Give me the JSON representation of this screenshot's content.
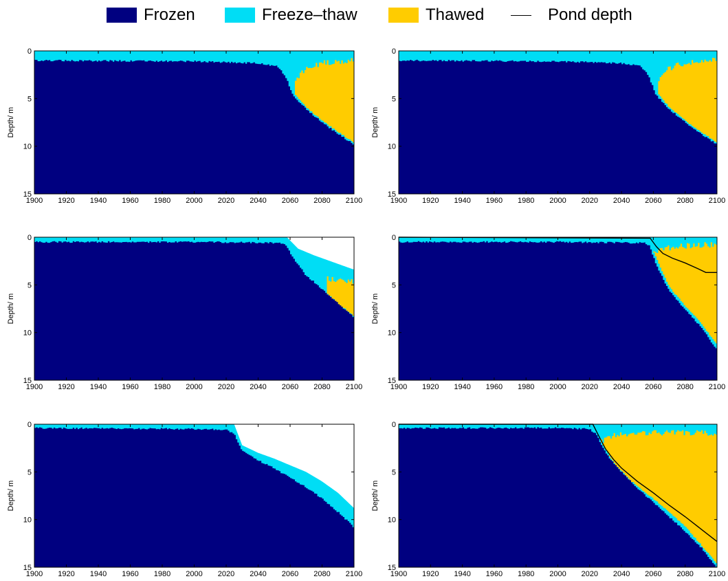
{
  "legend": {
    "position": "top",
    "items": [
      {
        "label": "Frozen",
        "color": "#000080",
        "kind": "swatch"
      },
      {
        "label": "Freeze–thaw",
        "color": "#00ddf5",
        "kind": "swatch"
      },
      {
        "label": "Thawed",
        "color": "#ffcc00",
        "kind": "swatch"
      },
      {
        "label": "Pond depth",
        "color": "#000000",
        "kind": "line"
      }
    ]
  },
  "chart_data": [
    {
      "type": "area",
      "ylabel": "Depth/ m",
      "xlim": [
        1900,
        2100
      ],
      "ylim": [
        0,
        15
      ],
      "y_inverted": true,
      "xticks": [
        1900,
        1920,
        1940,
        1960,
        1980,
        2000,
        2020,
        2040,
        2060,
        2080,
        2100
      ],
      "yticks": [
        0,
        5,
        10,
        15
      ],
      "frozen_top": {
        "x": [
          1900,
          2000,
          2040,
          2052,
          2057,
          2062,
          2070,
          2080,
          2090,
          2100
        ],
        "y": [
          1.0,
          1.1,
          1.3,
          1.6,
          2.6,
          4.7,
          6.1,
          7.5,
          8.7,
          9.8
        ]
      },
      "thawed_top": {
        "x": [
          2063,
          2070,
          2080,
          2090,
          2100
        ],
        "y": [
          3.0,
          1.5,
          1.0,
          0.8,
          0.6
        ]
      },
      "thawed_bottom": {
        "x": [
          2063,
          2070,
          2080,
          2090,
          2100
        ],
        "y": [
          4.5,
          5.9,
          7.3,
          8.5,
          9.6
        ]
      }
    },
    {
      "type": "area",
      "ylabel": "Depth/ m",
      "xlim": [
        1900,
        2100
      ],
      "ylim": [
        0,
        15
      ],
      "y_inverted": true,
      "xticks": [
        1900,
        1920,
        1940,
        1960,
        1980,
        2000,
        2020,
        2040,
        2060,
        2080,
        2100
      ],
      "yticks": [
        0,
        5,
        10,
        15
      ],
      "frozen_top": {
        "x": [
          1900,
          2000,
          2040,
          2052,
          2057,
          2062,
          2070,
          2080,
          2090,
          2100
        ],
        "y": [
          1.0,
          1.1,
          1.3,
          1.6,
          2.6,
          4.7,
          6.1,
          7.5,
          8.7,
          9.8
        ]
      },
      "thawed_top": {
        "x": [
          2063,
          2070,
          2080,
          2090,
          2100
        ],
        "y": [
          3.0,
          1.5,
          1.0,
          0.8,
          0.6
        ]
      },
      "thawed_bottom": {
        "x": [
          2063,
          2070,
          2080,
          2090,
          2100
        ],
        "y": [
          4.5,
          5.9,
          7.3,
          8.5,
          9.6
        ]
      }
    },
    {
      "type": "area",
      "ylabel": "Depth/ m",
      "xlim": [
        1900,
        2100
      ],
      "ylim": [
        0,
        15
      ],
      "y_inverted": true,
      "xticks": [
        1900,
        1920,
        1940,
        1960,
        1980,
        2000,
        2020,
        2040,
        2060,
        2080,
        2100
      ],
      "yticks": [
        0,
        5,
        10,
        15
      ],
      "frozen_top": {
        "x": [
          1900,
          2000,
          2055,
          2058,
          2062,
          2070,
          2080,
          2090,
          2100
        ],
        "y": [
          0.5,
          0.5,
          0.6,
          1.0,
          2.2,
          4.0,
          5.4,
          6.9,
          8.4
        ]
      },
      "ft_top": {
        "x": [
          1900,
          2058,
          2065,
          2075,
          2085,
          2100
        ],
        "y": [
          0.0,
          0.0,
          1.2,
          1.9,
          2.5,
          3.4
        ]
      },
      "thawed_top": {
        "x": [
          2083,
          2090,
          2100
        ],
        "y": [
          4.0,
          4.2,
          4.4
        ]
      },
      "thawed_bottom": {
        "x": [
          2083,
          2090,
          2100
        ],
        "y": [
          5.9,
          6.9,
          8.3
        ]
      }
    },
    {
      "type": "area",
      "ylabel": "Depth/ m",
      "xlim": [
        1900,
        2100
      ],
      "ylim": [
        0,
        15
      ],
      "y_inverted": true,
      "xticks": [
        1900,
        1920,
        1940,
        1960,
        1980,
        2000,
        2020,
        2040,
        2060,
        2080,
        2100
      ],
      "yticks": [
        0,
        5,
        10,
        15
      ],
      "frozen_top": {
        "x": [
          1900,
          2000,
          2055,
          2058,
          2062,
          2070,
          2080,
          2090,
          2100
        ],
        "y": [
          0.5,
          0.5,
          0.6,
          1.0,
          3.0,
          5.6,
          7.6,
          9.4,
          11.8
        ]
      },
      "thawed_top": {
        "x": [
          2060,
          2070,
          2080,
          2090,
          2100
        ],
        "y": [
          1.4,
          0.8,
          0.6,
          0.5,
          0.5
        ]
      },
      "thawed_bottom": {
        "x": [
          2060,
          2070,
          2080,
          2090,
          2100
        ],
        "y": [
          1.5,
          5.2,
          7.2,
          9.0,
          11.3
        ]
      },
      "pond_depth": {
        "x": [
          1900,
          2058,
          2062,
          2066,
          2072,
          2080,
          2088,
          2093,
          2100
        ],
        "y": [
          0.0,
          0.1,
          1.0,
          1.7,
          2.2,
          2.7,
          3.3,
          3.7,
          3.7
        ]
      }
    },
    {
      "type": "area",
      "ylabel": "Depth/ m",
      "xlim": [
        1900,
        2100
      ],
      "ylim": [
        0,
        15
      ],
      "y_inverted": true,
      "xticks": [
        1900,
        1920,
        1940,
        1960,
        1980,
        2000,
        2020,
        2040,
        2060,
        2080,
        2100
      ],
      "yticks": [
        0,
        5,
        10,
        15
      ],
      "frozen_top": {
        "x": [
          1900,
          2000,
          2020,
          2025,
          2030,
          2040,
          2050,
          2060,
          2070,
          2080,
          2090,
          2100
        ],
        "y": [
          0.4,
          0.5,
          0.6,
          1.0,
          2.8,
          3.8,
          4.6,
          5.6,
          6.6,
          7.8,
          9.2,
          10.8
        ]
      },
      "ft_top": {
        "x": [
          1900,
          2025,
          2030,
          2040,
          2050,
          2060,
          2070,
          2080,
          2090,
          2100
        ],
        "y": [
          0.0,
          0.0,
          2.2,
          3.0,
          3.6,
          4.3,
          5.0,
          6.0,
          7.2,
          8.8
        ]
      }
    },
    {
      "type": "area",
      "ylabel": "Depth/ m",
      "xlim": [
        1900,
        2100
      ],
      "ylim": [
        0,
        15
      ],
      "y_inverted": true,
      "xticks": [
        1900,
        1920,
        1940,
        1960,
        1980,
        2000,
        2020,
        2040,
        2060,
        2080,
        2100
      ],
      "yticks": [
        0,
        5,
        10,
        15
      ],
      "frozen_top": {
        "x": [
          1900,
          2000,
          2020,
          2024,
          2030,
          2040,
          2050,
          2060,
          2070,
          2080,
          2090,
          2100
        ],
        "y": [
          0.4,
          0.4,
          0.5,
          1.0,
          3.0,
          5.0,
          6.7,
          8.2,
          9.7,
          11.2,
          12.9,
          15.0
        ]
      },
      "thawed_top": {
        "x": [
          2027,
          2035,
          2045,
          2060,
          2080,
          2100
        ],
        "y": [
          1.6,
          0.9,
          0.7,
          0.6,
          0.6,
          0.6
        ]
      },
      "thawed_bottom": {
        "x": [
          2027,
          2035,
          2045,
          2060,
          2080,
          2100
        ],
        "y": [
          1.8,
          4.0,
          5.8,
          7.8,
          10.7,
          14.6
        ]
      },
      "pond_depth": {
        "x": [
          1900,
          2022,
          2025,
          2030,
          2035,
          2040,
          2050,
          2060,
          2070,
          2080,
          2090,
          2100
        ],
        "y": [
          0.0,
          0.0,
          1.0,
          2.6,
          3.7,
          4.6,
          6.0,
          7.2,
          8.5,
          9.7,
          11.0,
          12.3
        ]
      }
    }
  ]
}
